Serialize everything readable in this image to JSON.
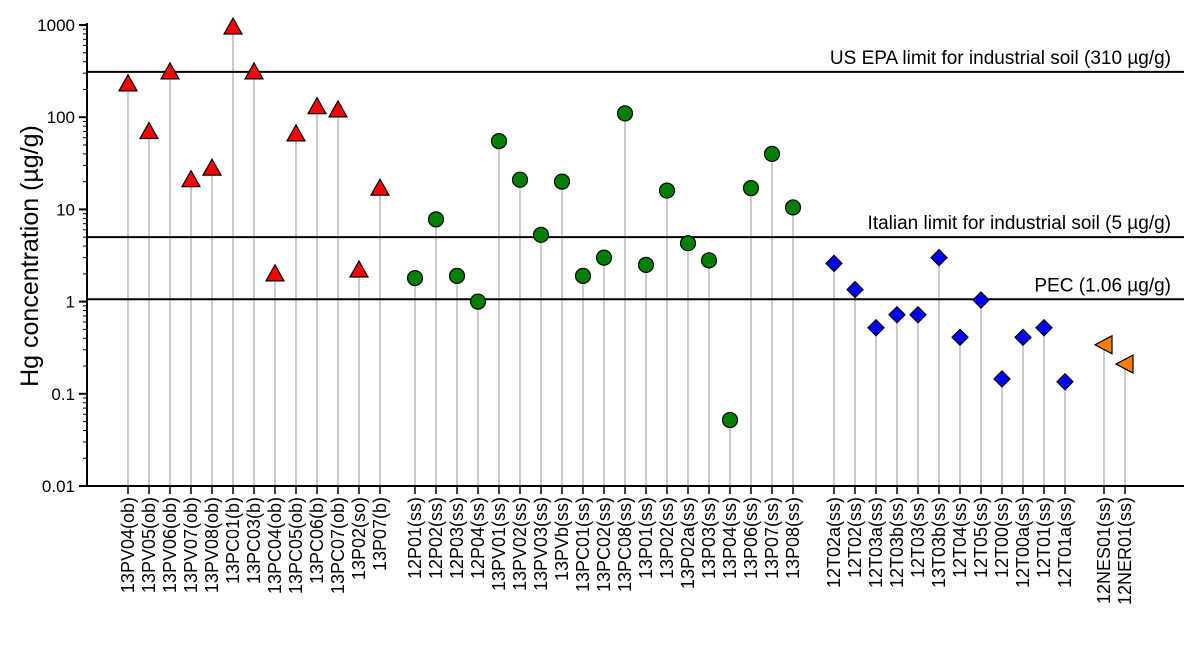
{
  "chart_data": {
    "type": "scatter",
    "title": "",
    "xlabel": "",
    "ylabel": "Hg concentration (µg/g)",
    "yscale": "log",
    "ylim": [
      0.01,
      1000
    ],
    "yticks": [
      "0.01",
      "0.1",
      "1",
      "10",
      "100",
      "1000"
    ],
    "grid": false,
    "reference_lines": [
      {
        "y": 310,
        "label": "US EPA limit for industrial soil (310 µg/g)"
      },
      {
        "y": 5,
        "label": "Italian limit for industrial soil (5 µg/g)"
      },
      {
        "y": 1.06,
        "label": "PEC (1.06 µg/g)"
      }
    ],
    "series": [
      {
        "marker": "triangle-up",
        "color": "#ff0000",
        "categories": [
          "13PV04(ob)",
          "13PV05(ob)",
          "13PV06(ob)",
          "13PV07(ob)",
          "13PV08(ob)",
          "13PC01(b)",
          "13PC03(b)",
          "13PC04(ob)",
          "13PC05(ob)",
          "13PC06(b)",
          "13PC07(ob)",
          "13P02(so)",
          "13P07(b)"
        ],
        "values": [
          230,
          70,
          310,
          21,
          28,
          950,
          310,
          2.0,
          66,
          130,
          120,
          2.2,
          17
        ]
      },
      {
        "marker": "circle",
        "color": "#008000",
        "categories": [
          "12P01(ss)",
          "12P02(ss)",
          "12P03(ss)",
          "12P04(ss)",
          "13PV01(ss)",
          "13PV02(ss)",
          "13PV03(ss)",
          "13PVb(ss)",
          "13PC01(ss)",
          "13PC02(ss)",
          "13PC08(ss)",
          "13P01(ss)",
          "13P02(ss)",
          "13P02a(ss)",
          "13P03(ss)",
          "13P04(ss)",
          "13P06(ss)",
          "13P07(ss)",
          "13P08(ss)"
        ],
        "values": [
          1.8,
          7.8,
          1.9,
          1.0,
          55,
          21,
          5.3,
          20,
          1.9,
          3.0,
          110,
          2.5,
          16,
          4.3,
          2.8,
          0.052,
          17,
          40,
          10.5
        ]
      },
      {
        "marker": "diamond",
        "color": "#0000ff",
        "categories": [
          "12T02a(ss)",
          "12T02(ss)",
          "12T03a(ss)",
          "12T03b(ss)",
          "12T03(ss)",
          "13T03b(ss)",
          "12T04(ss)",
          "12T05(ss)",
          "12T00(ss)",
          "12T00a(ss)",
          "12T01(ss)",
          "12T01a(ss)"
        ],
        "values": [
          2.6,
          1.35,
          0.52,
          0.72,
          0.72,
          3.0,
          0.41,
          1.04,
          0.145,
          0.41,
          0.52,
          0.135
        ]
      },
      {
        "marker": "triangle-left",
        "color": "#ff8000",
        "categories": [
          "12NES01(ss)",
          "12NER01(ss)"
        ],
        "values": [
          0.34,
          0.21
        ]
      }
    ]
  }
}
